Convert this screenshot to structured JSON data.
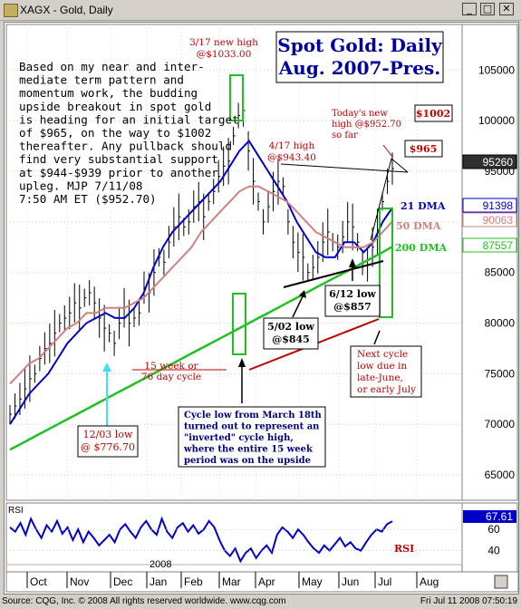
{
  "window": {
    "title": "XAGX - Gold, Daily",
    "minimize_label": "_",
    "restore_label": "□",
    "close_label": "✕"
  },
  "footer": {
    "copyright": "Source: CQG, Inc. © 2008 All rights reserved worldwide. www.cqg.com",
    "timestamp": "Fri Jul 11 2008 07:50:19"
  },
  "chart_data": [
    {
      "type": "line",
      "title": "Spot Gold: Daily",
      "subtitle": "Aug. 2007-Pres.",
      "y_ticks": [
        65000,
        70000,
        75000,
        80000,
        85000,
        90000,
        95000,
        100000,
        105000
      ],
      "y_tick_labels": [
        "65000",
        "70000",
        "75000",
        "80000",
        "85000",
        "90000",
        "95000",
        "100000",
        "105000"
      ],
      "ylim": [
        62500,
        109500
      ],
      "x_tick_labels": [
        "Oct",
        "Nov",
        "Dec",
        "Jan",
        "Feb",
        "Mar",
        "Apr",
        "May",
        "Jun",
        "Jul",
        "Aug"
      ],
      "year_label": "2008",
      "series": [
        {
          "name": "21 DMA",
          "color": "#0000c8",
          "last_value": "91398",
          "values": [
            70000,
            71500,
            73000,
            74000,
            75000,
            76500,
            78000,
            79000,
            80000,
            80500,
            81000,
            80500,
            80500,
            81500,
            83000,
            85500,
            87500,
            89000,
            90000,
            91000,
            92000,
            93000,
            94000,
            95500,
            97000,
            98000,
            96500,
            95000,
            93500,
            92000,
            90000,
            88500,
            87000,
            86500,
            86500,
            88000,
            88000,
            87000,
            88000,
            90000,
            91398
          ]
        },
        {
          "name": "50 DMA",
          "color": "#d08080",
          "last_value": "90063",
          "values": [
            74000,
            75000,
            76000,
            76500,
            77500,
            78500,
            79500,
            80000,
            81000,
            81000,
            81500,
            81500,
            81500,
            82000,
            82500,
            83500,
            84500,
            85500,
            86500,
            87500,
            89000,
            90000,
            91000,
            92000,
            93000,
            93500,
            93500,
            93000,
            92500,
            92000,
            91000,
            90000,
            89000,
            88500,
            88000,
            87500,
            87500,
            87500,
            88000,
            89000,
            90063
          ]
        },
        {
          "name": "200 DMA",
          "color": "#20c020",
          "last_value": "87557",
          "values": [
            67500,
            68000,
            68500,
            69000,
            69500,
            70000,
            70500,
            71000,
            71500,
            72000,
            72500,
            73000,
            73500,
            74000,
            74500,
            75000,
            75500,
            76000,
            76500,
            77000,
            77500,
            78000,
            78500,
            79000,
            79500,
            80000,
            80500,
            81000,
            81500,
            82000,
            82500,
            83000,
            83500,
            84000,
            84500,
            85000,
            85500,
            86000,
            86500,
            87000,
            87557
          ]
        }
      ],
      "price_bars": {
        "name": "Gold",
        "last_value": "95260",
        "closes": [
          71000,
          71800,
          72500,
          73500,
          74500,
          75000,
          76500,
          77500,
          78000,
          79000,
          80000,
          80500,
          81000,
          82000,
          81500,
          82500,
          83000,
          82000,
          80500,
          79500,
          79000,
          78000,
          80000,
          81500,
          80000,
          80500,
          81000,
          83500,
          83000,
          85000,
          86500,
          86000,
          88000,
          89500,
          90500,
          89500,
          90000,
          91500,
          92000,
          90500,
          92000,
          93000,
          94500,
          95500,
          96000,
          98500,
          100500,
          101000,
          97000,
          94000,
          92000,
          90000,
          91500,
          93000,
          94000,
          93500,
          90000,
          88000,
          87000,
          86500,
          85000,
          85500,
          86500,
          88000,
          89000,
          88000,
          87500,
          88500,
          90000,
          89500,
          88000,
          86000,
          85700,
          87500,
          89000,
          92000,
          94000,
          95260
        ]
      },
      "price_labels": [
        "95260",
        "91398",
        "90063",
        "87557"
      ],
      "price_label_colors": [
        "#000000",
        "#0000c8",
        "#d08080",
        "#20c020"
      ],
      "annotations": {
        "commentary": [
          "Based on my near and inter-",
          "mediate term pattern and",
          "momentum work, the budding",
          "upside breakout in spot gold",
          "is heading for an initial target",
          "of $965, on the way to $1002",
          "thereafter. Any pullback should",
          "find very substantial support",
          "at $944-$939 prior to another",
          "upleg.  MJP  7/11/08",
          "7:50 AM ET  ($952.70)"
        ],
        "high_3_17": [
          "3/17 new high",
          "@$1033.00"
        ],
        "high_4_17": [
          "4/17 high",
          "@$943.40"
        ],
        "todays_high": [
          "Today's new",
          "high @$952.70",
          "so far"
        ],
        "target_1002": "$1002",
        "target_965": "$965",
        "low_5_02": [
          "5/02 low",
          "@$845"
        ],
        "low_6_12": [
          "6/12 low",
          "@$857"
        ],
        "low_12_03": [
          "12/03 low",
          "@ $776.70"
        ],
        "cycle_length": [
          "15 week or",
          "76 day cycle"
        ],
        "next_cycle": [
          "Next cycle",
          "low due in",
          "late-June,",
          "or early July"
        ],
        "cycle_march": [
          "Cycle low from March 18th",
          "turned out to represent an",
          "\"inverted\" cycle high,",
          "where the entire 15 week",
          "period was on the upside"
        ]
      }
    },
    {
      "type": "line",
      "title": "RSI",
      "series_label": "RSI",
      "last_value": "67.61",
      "y_tick_labels": [
        "60",
        "40"
      ],
      "ylim": [
        20,
        85
      ],
      "values": [
        62,
        58,
        66,
        55,
        70,
        60,
        52,
        64,
        58,
        68,
        56,
        62,
        50,
        60,
        48,
        58,
        52,
        45,
        50,
        55,
        48,
        60,
        65,
        58,
        52,
        62,
        68,
        60,
        55,
        70,
        58,
        52,
        62,
        66,
        58,
        64,
        56,
        60,
        68,
        62,
        50,
        40,
        35,
        42,
        30,
        38,
        42,
        33,
        40,
        45,
        38,
        55,
        62,
        58,
        52,
        60,
        55,
        48,
        42,
        38,
        45,
        40,
        46,
        52,
        44,
        48,
        42,
        40,
        48,
        55,
        60,
        58,
        65,
        67.61
      ]
    }
  ]
}
